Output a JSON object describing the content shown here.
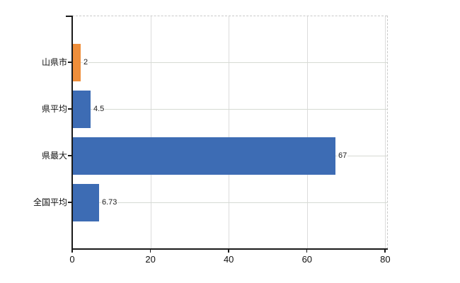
{
  "chart_data": {
    "type": "bar",
    "orientation": "horizontal",
    "title": "",
    "xlabel": "",
    "ylabel": "",
    "categories": [
      "山県市",
      "県平均",
      "県最大",
      "全国平均"
    ],
    "values": [
      2,
      4.5,
      67,
      6.73
    ],
    "value_labels": [
      "2",
      "4.5",
      "67",
      "6.73"
    ],
    "x_ticks": [
      0,
      20,
      40,
      60,
      80
    ],
    "xlim": [
      0,
      80
    ],
    "grid": true,
    "legend_position": "none",
    "bar_colors": [
      "#ef8e3a",
      "#3d6cb4",
      "#3d6cb4",
      "#3d6cb4"
    ],
    "colors": {
      "highlight_bar": "#ef8e3a",
      "default_bar": "#3d6cb4",
      "axis": "#1a1a1a",
      "vertical_gridline": "#dcdcdc",
      "horizontal_gridline": "#d6dad3",
      "border_dashed": "#c9c9c9",
      "text": "#111111",
      "background": "#ffffff"
    }
  }
}
